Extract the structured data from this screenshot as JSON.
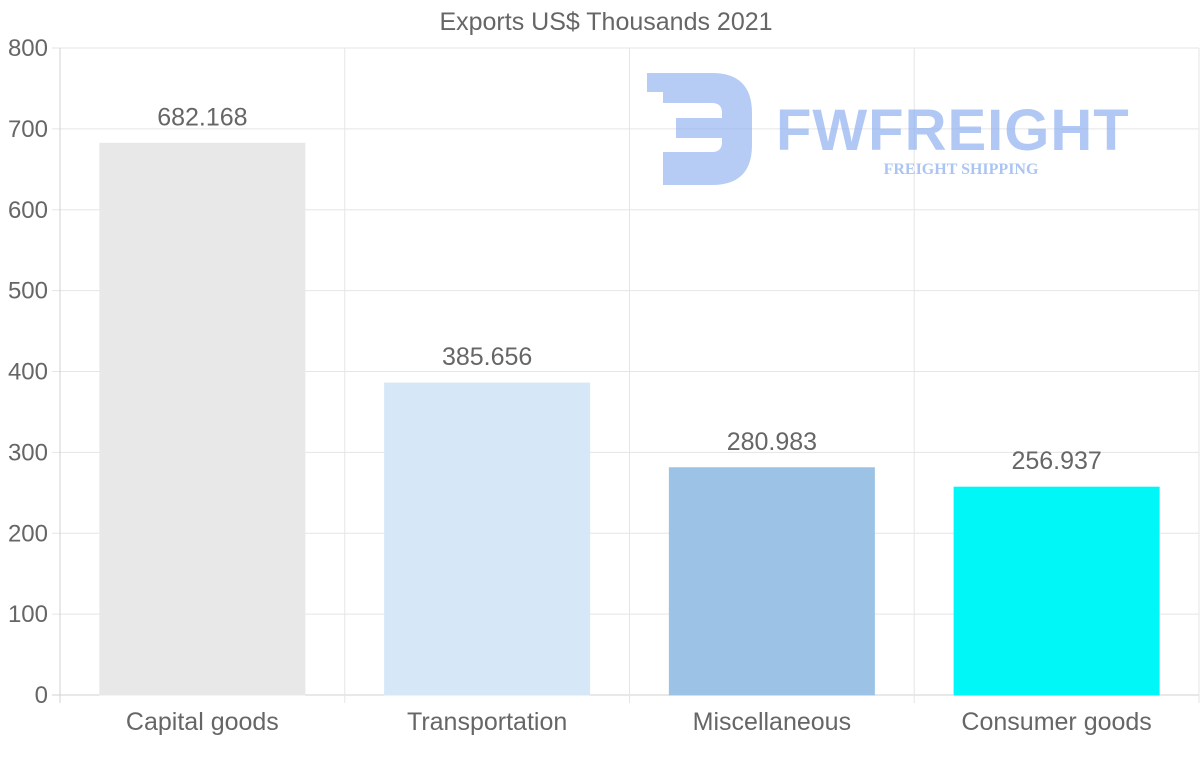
{
  "chart_data": {
    "type": "bar",
    "title": "Exports US$ Thousands 2021",
    "categories": [
      "Capital goods",
      "Transportation",
      "Miscellaneous",
      "Consumer goods"
    ],
    "values": [
      682.168,
      385.656,
      280.983,
      256.937
    ],
    "value_labels": [
      "682.168",
      "385.656",
      "280.983",
      "256.937"
    ],
    "bar_colors": [
      "#e8e8e8",
      "#d6e8f8",
      "#9cc3e6",
      "#00f7f7"
    ],
    "ylim": [
      0,
      800
    ],
    "yticks": [
      0,
      100,
      200,
      300,
      400,
      500,
      600,
      700,
      800
    ],
    "ytick_labels": [
      "0",
      "100",
      "200",
      "300",
      "400",
      "500",
      "600",
      "700",
      "800"
    ],
    "xlabel": "",
    "ylabel": "",
    "grid": true
  },
  "watermark": {
    "brand": "FWFREIGHT",
    "tagline": "FREIGHT SHIPPING",
    "color": "#8fb1ef"
  }
}
